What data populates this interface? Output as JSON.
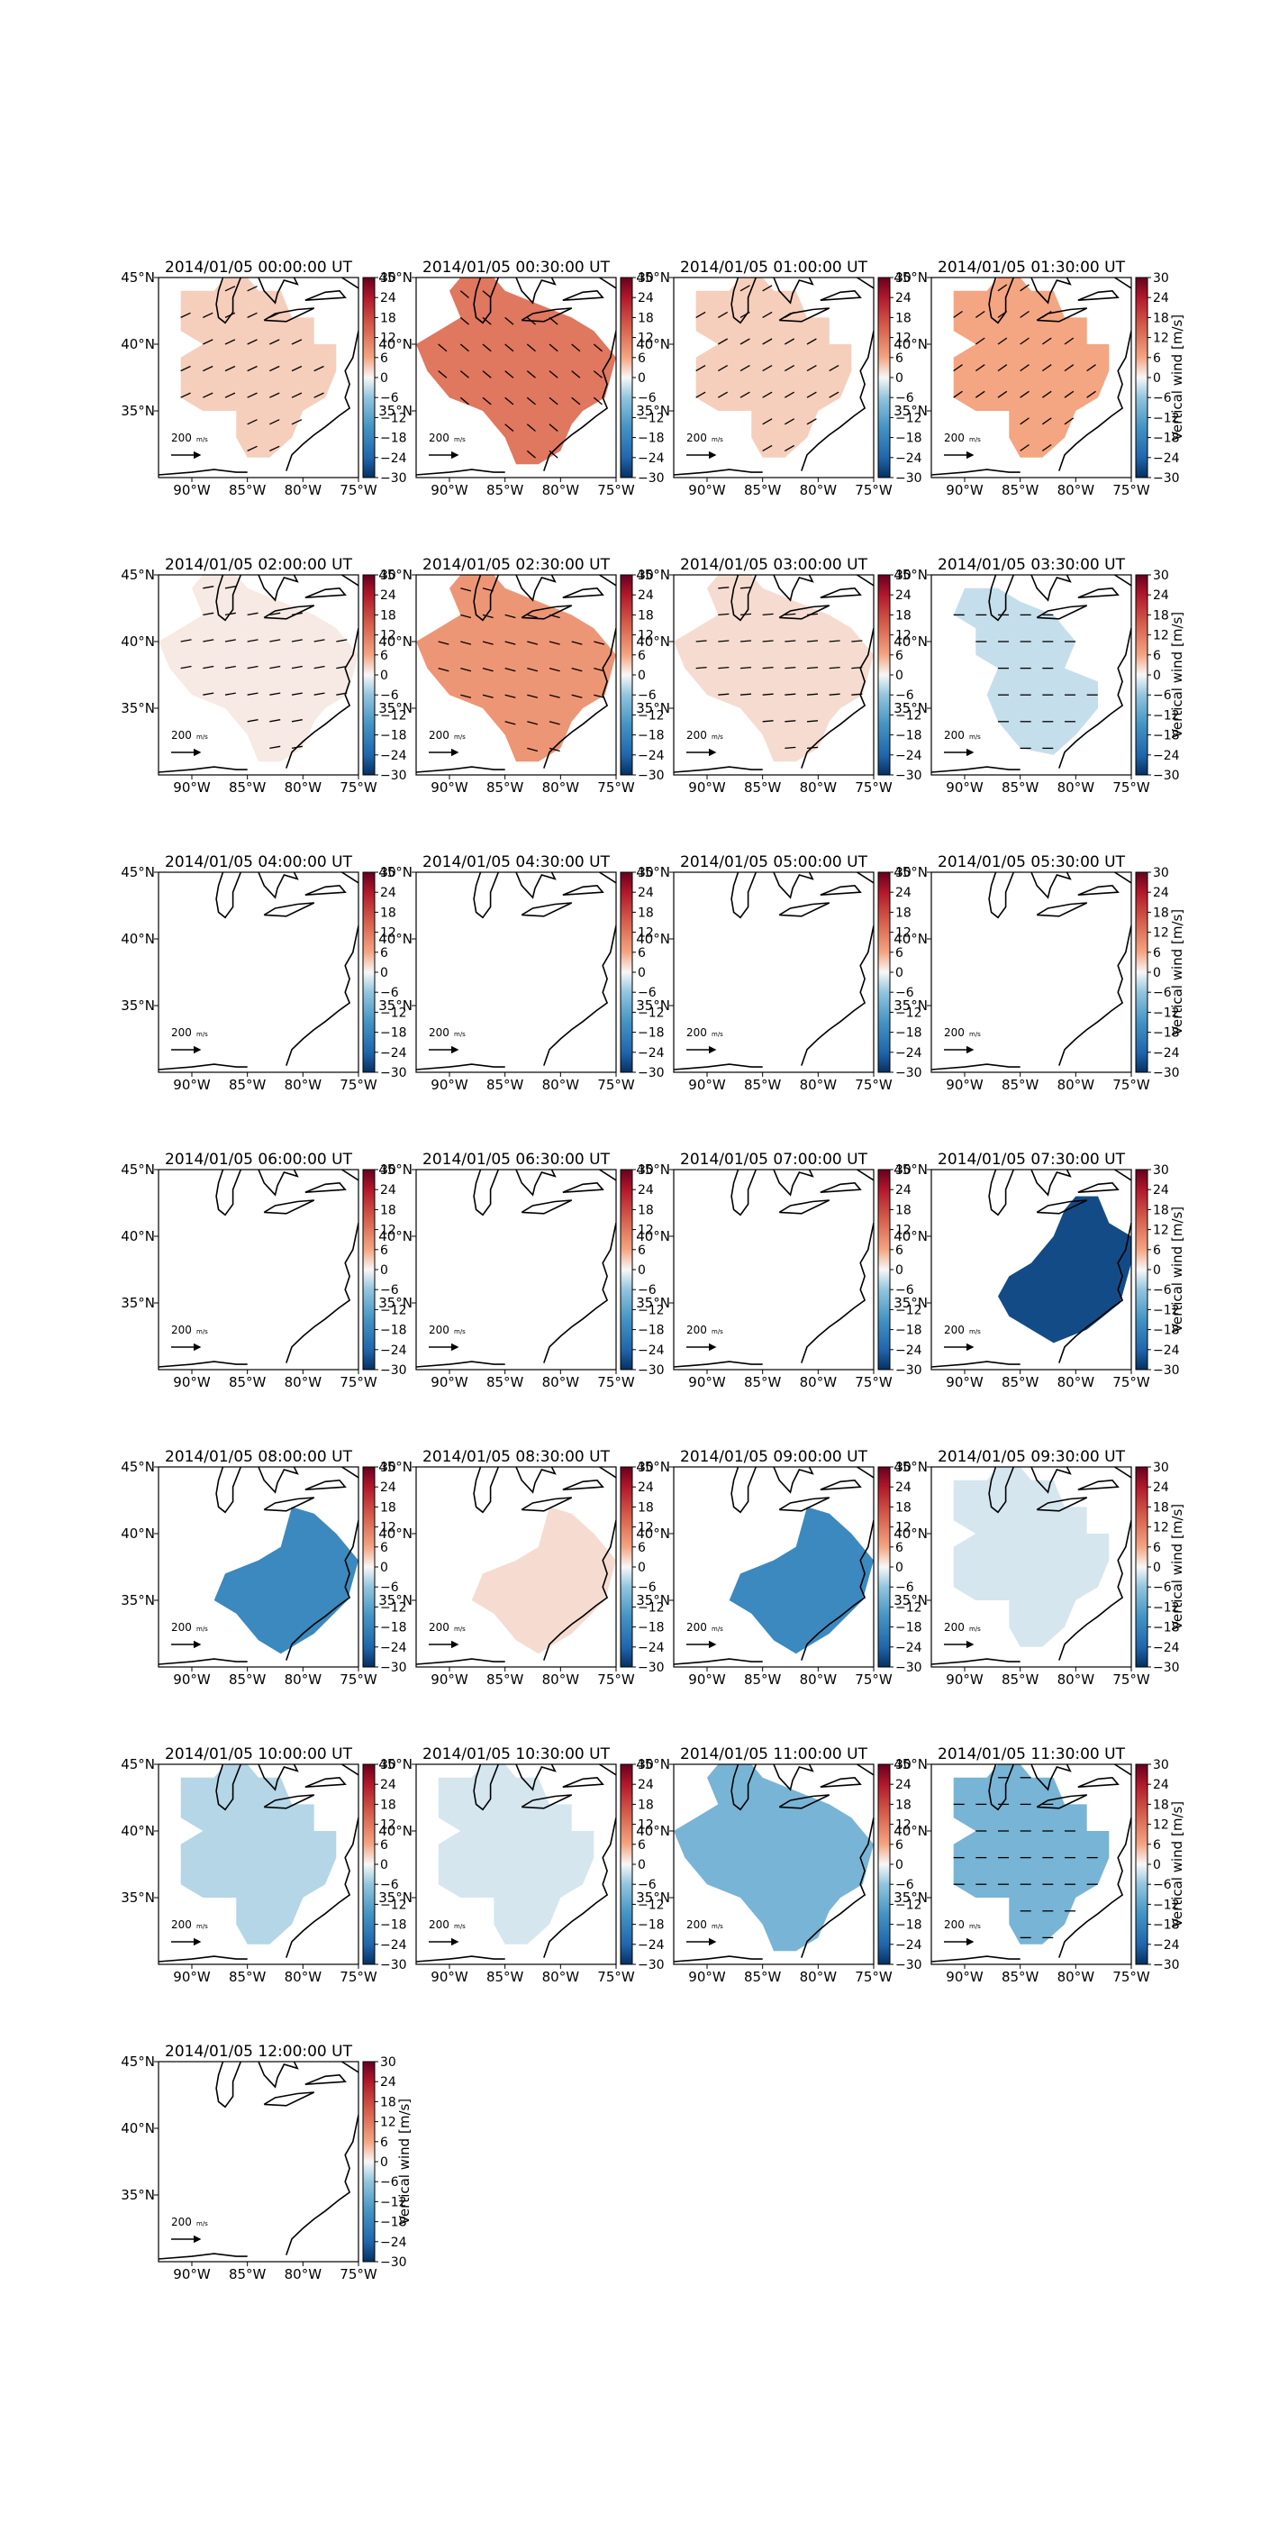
{
  "chart_data": {
    "type": "heatmap",
    "layout": {
      "rows": 7,
      "cols": 4
    },
    "colorbar": {
      "label": "Vertical wind [m/s]",
      "range": [
        -30,
        30
      ],
      "ticks": [
        "30",
        "24",
        "18",
        "12",
        "6",
        "0",
        "−6",
        "−12",
        "−18",
        "−24",
        "−30"
      ],
      "colormap": "RdBu_r"
    },
    "xticks": [
      "90°W",
      "85°W",
      "80°W",
      "75°W"
    ],
    "yticks": [
      "45°N",
      "40°N",
      "35°N"
    ],
    "reference_vector": {
      "label": "200",
      "unit": "m/s"
    },
    "xlim": [
      -93,
      -75
    ],
    "ylim": [
      30,
      45
    ],
    "panels": [
      {
        "title": "2014/01/05 00:00:00 UT",
        "value": 3,
        "region": "A",
        "arrows": true,
        "arrow_dir": 25
      },
      {
        "title": "2014/01/05 00:30:00 UT",
        "value": 12,
        "region": "B",
        "arrows": true,
        "arrow_dir": -40
      },
      {
        "title": "2014/01/05 01:00:00 UT",
        "value": 3,
        "region": "A",
        "arrows": true,
        "arrow_dir": 30
      },
      {
        "title": "2014/01/05 01:30:00 UT",
        "value": 6,
        "region": "A",
        "arrows": true,
        "arrow_dir": 35
      },
      {
        "title": "2014/01/05 02:00:00 UT",
        "value": 1,
        "region": "B",
        "arrows": true,
        "arrow_dir": 10
      },
      {
        "title": "2014/01/05 02:30:00 UT",
        "value": 8,
        "region": "B",
        "arrows": true,
        "arrow_dir": -15
      },
      {
        "title": "2014/01/05 03:00:00 UT",
        "value": 2,
        "region": "B",
        "arrows": true,
        "arrow_dir": 5
      },
      {
        "title": "2014/01/05 03:30:00 UT",
        "value": -3,
        "region": "C",
        "arrows": true,
        "arrow_dir": 0
      },
      {
        "title": "2014/01/05 04:00:00 UT",
        "value": null
      },
      {
        "title": "2014/01/05 04:30:00 UT",
        "value": null
      },
      {
        "title": "2014/01/05 05:00:00 UT",
        "value": null
      },
      {
        "title": "2014/01/05 05:30:00 UT",
        "value": null
      },
      {
        "title": "2014/01/05 06:00:00 UT",
        "value": null
      },
      {
        "title": "2014/01/05 06:30:00 UT",
        "value": null
      },
      {
        "title": "2014/01/05 07:00:00 UT",
        "value": null
      },
      {
        "title": "2014/01/05 07:30:00 UT",
        "value": -27,
        "region": "D",
        "arrows": false
      },
      {
        "title": "2014/01/05 08:00:00 UT",
        "value": -17,
        "region": "D2",
        "arrows": false
      },
      {
        "title": "2014/01/05 08:30:00 UT",
        "value": 2,
        "region": "D2",
        "arrows": false
      },
      {
        "title": "2014/01/05 09:00:00 UT",
        "value": -17,
        "region": "D2",
        "arrows": false
      },
      {
        "title": "2014/01/05 09:30:00 UT",
        "value": -2,
        "region": "A",
        "arrows": false
      },
      {
        "title": "2014/01/05 10:00:00 UT",
        "value": -4,
        "region": "A",
        "arrows": false
      },
      {
        "title": "2014/01/05 10:30:00 UT",
        "value": -2,
        "region": "A",
        "arrows": false
      },
      {
        "title": "2014/01/05 11:00:00 UT",
        "value": -9,
        "region": "B",
        "arrows": false
      },
      {
        "title": "2014/01/05 11:30:00 UT",
        "value": -9,
        "region": "A",
        "arrows": true,
        "arrow_dir": 0
      },
      {
        "title": "2014/01/05 12:00:00 UT",
        "value": null
      }
    ]
  }
}
